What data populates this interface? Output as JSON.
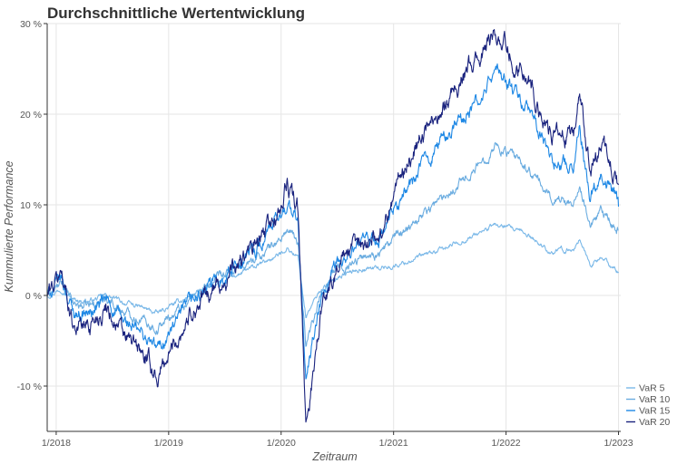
{
  "chart_data": {
    "type": "line",
    "title": "Durchschnittliche Wertentwicklung",
    "xlabel": "Zeitraum",
    "ylabel": "Kummulierte Performance",
    "xlim": [
      2017.92,
      2023.02
    ],
    "ylim": [
      -15,
      30
    ],
    "xticks": [
      {
        "value": 2018,
        "label": "1/2018"
      },
      {
        "value": 2019,
        "label": "1/2019"
      },
      {
        "value": 2020,
        "label": "1/2020"
      },
      {
        "value": 2021,
        "label": "1/2021"
      },
      {
        "value": 2022,
        "label": "1/2022"
      },
      {
        "value": 2023,
        "label": "1/2023"
      }
    ],
    "yticks": [
      {
        "value": -10,
        "label": "-10 %"
      },
      {
        "value": 0,
        "label": "0 %"
      },
      {
        "value": 10,
        "label": "10 %"
      },
      {
        "value": 20,
        "label": "20 %"
      },
      {
        "value": 30,
        "label": "30 %"
      }
    ],
    "grid": true,
    "legend_position": "bottom-right",
    "series": [
      {
        "name": "VaR 5",
        "color": "#7ab8e8",
        "x": [
          2017.92,
          2018.05,
          2018.15,
          2018.3,
          2018.45,
          2018.6,
          2018.75,
          2018.9,
          2019.0,
          2019.2,
          2019.4,
          2019.6,
          2019.8,
          2020.0,
          2020.05,
          2020.15,
          2020.22,
          2020.35,
          2020.5,
          2020.7,
          2020.9,
          2021.0,
          2021.2,
          2021.4,
          2021.6,
          2021.8,
          2021.9,
          2022.0,
          2022.2,
          2022.4,
          2022.6,
          2022.65,
          2022.75,
          2022.85,
          2023.0
        ],
        "y": [
          0.0,
          0.8,
          -0.5,
          -0.6,
          0.0,
          -0.8,
          -1.3,
          -2.0,
          -1.3,
          0.0,
          1.2,
          2.2,
          3.3,
          4.6,
          5.3,
          4.2,
          -2.3,
          0.6,
          2.1,
          2.9,
          3.1,
          3.2,
          4.1,
          4.9,
          6.0,
          7.1,
          7.8,
          7.5,
          6.6,
          4.8,
          5.1,
          6.3,
          3.4,
          4.1,
          2.6
        ]
      },
      {
        "name": "VaR 10",
        "color": "#6aace0",
        "x": [
          2017.92,
          2018.05,
          2018.15,
          2018.3,
          2018.45,
          2018.6,
          2018.75,
          2018.9,
          2019.0,
          2019.2,
          2019.4,
          2019.6,
          2019.8,
          2020.0,
          2020.05,
          2020.15,
          2020.22,
          2020.35,
          2020.5,
          2020.7,
          2020.9,
          2021.0,
          2021.2,
          2021.4,
          2021.6,
          2021.8,
          2021.9,
          2022.0,
          2022.2,
          2022.4,
          2022.6,
          2022.65,
          2022.75,
          2022.85,
          2023.0
        ],
        "y": [
          0.0,
          1.2,
          -1.0,
          -1.2,
          -0.2,
          -1.8,
          -2.5,
          -3.6,
          -2.5,
          -0.3,
          1.4,
          2.8,
          4.3,
          6.2,
          7.3,
          5.7,
          -5.3,
          0.2,
          3.0,
          4.1,
          4.9,
          6.2,
          8.5,
          10.4,
          12.7,
          14.8,
          16.7,
          15.8,
          13.8,
          10.8,
          10.3,
          12.5,
          7.5,
          9.0,
          7.2
        ]
      },
      {
        "name": "VaR 15",
        "color": "#1e88e5",
        "x": [
          2017.92,
          2018.05,
          2018.15,
          2018.3,
          2018.45,
          2018.6,
          2018.75,
          2018.9,
          2019.0,
          2019.2,
          2019.4,
          2019.6,
          2019.8,
          2020.0,
          2020.05,
          2020.15,
          2020.22,
          2020.35,
          2020.5,
          2020.7,
          2020.9,
          2021.0,
          2021.2,
          2021.4,
          2021.6,
          2021.8,
          2021.9,
          2022.0,
          2022.2,
          2022.4,
          2022.6,
          2022.65,
          2022.75,
          2022.85,
          2023.0
        ],
        "y": [
          0.0,
          1.8,
          -1.8,
          -2.0,
          -0.6,
          -3.0,
          -4.2,
          -6.0,
          -4.3,
          -0.8,
          1.3,
          3.4,
          5.6,
          8.6,
          10.3,
          8.0,
          -9.3,
          -1.0,
          3.4,
          5.4,
          6.5,
          9.3,
          13.3,
          16.8,
          19.4,
          22.0,
          25.0,
          23.5,
          20.3,
          15.0,
          14.3,
          18.8,
          11.0,
          14.1,
          9.8
        ]
      },
      {
        "name": "VaR 20",
        "color": "#1a237e",
        "x": [
          2017.92,
          2018.05,
          2018.15,
          2018.3,
          2018.45,
          2018.6,
          2018.75,
          2018.9,
          2019.0,
          2019.2,
          2019.4,
          2019.6,
          2019.8,
          2020.0,
          2020.05,
          2020.15,
          2020.22,
          2020.35,
          2020.5,
          2020.7,
          2020.9,
          2021.0,
          2021.2,
          2021.4,
          2021.6,
          2021.8,
          2021.9,
          2022.0,
          2022.2,
          2022.4,
          2022.6,
          2022.65,
          2022.75,
          2022.85,
          2023.0
        ],
        "y": [
          0.0,
          2.5,
          -3.0,
          -3.2,
          -1.0,
          -4.6,
          -6.3,
          -9.0,
          -6.6,
          -1.7,
          0.6,
          3.0,
          5.8,
          9.6,
          12.3,
          9.3,
          -14.6,
          -2.0,
          3.6,
          5.6,
          7.0,
          11.6,
          16.5,
          20.5,
          24.0,
          26.8,
          29.2,
          27.6,
          23.7,
          17.7,
          16.8,
          22.8,
          13.2,
          16.5,
          12.2
        ]
      }
    ]
  }
}
